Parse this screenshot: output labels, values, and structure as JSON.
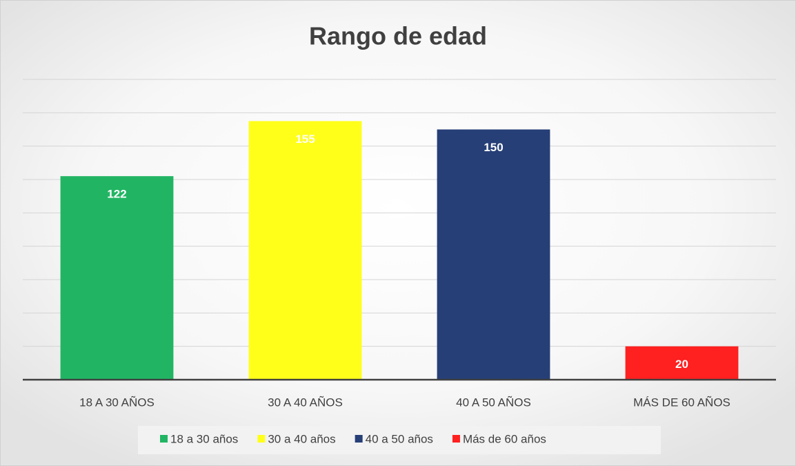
{
  "chart_data": {
    "type": "bar",
    "title": "Rango de edad",
    "categories": [
      "18 A 30 AÑOS",
      "30 A 40 AÑOS",
      "40 A 50 AÑOS",
      "MÁS  DE 60 AÑOS"
    ],
    "series": [
      {
        "name": "18 a 30 años",
        "color": "#21b563",
        "values": [
          122,
          null,
          null,
          null
        ]
      },
      {
        "name": "30 a 40 años",
        "color": "#ffff1a",
        "values": [
          null,
          155,
          null,
          null
        ]
      },
      {
        "name": "40 a 50 años",
        "color": "#263f77",
        "values": [
          null,
          null,
          150,
          null
        ]
      },
      {
        "name": "Más  de 60 años",
        "color": "#ff2020",
        "values": [
          null,
          null,
          null,
          20
        ]
      }
    ],
    "ylim": [
      0,
      180
    ],
    "yticks": [
      0,
      20,
      40,
      60,
      80,
      100,
      120,
      140,
      160,
      180
    ],
    "grid": true,
    "legend": "bottom"
  }
}
